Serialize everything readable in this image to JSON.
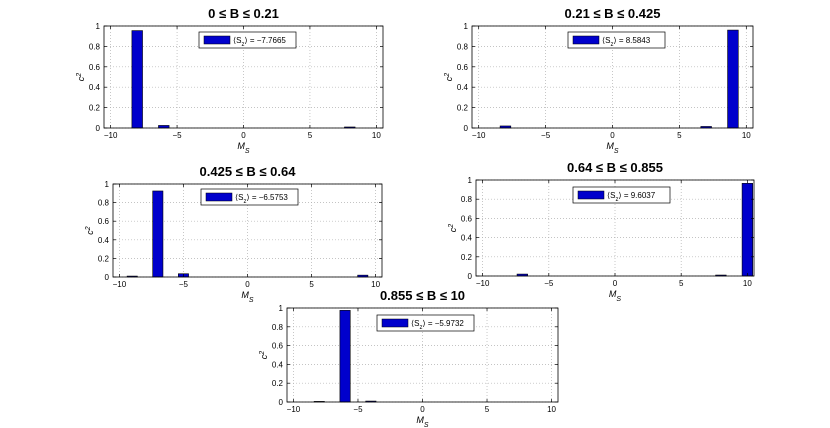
{
  "chart_data": [
    {
      "type": "bar",
      "title": "0 ≤ B ≤ 0.21",
      "xlabel": "M_S",
      "ylabel": "c^2",
      "xlim": [
        -10.5,
        10.5
      ],
      "ylim": [
        0,
        1
      ],
      "xticks": [
        -10,
        -5,
        0,
        5,
        10
      ],
      "yticks": [
        0,
        0.2,
        0.4,
        0.6,
        0.8,
        1
      ],
      "x": [
        -8,
        -6,
        8
      ],
      "values": [
        0.955,
        0.025,
        0.01
      ],
      "legend": "⟨S_z⟩ = −7.7665",
      "color": "#0000cc",
      "grid": true
    },
    {
      "type": "bar",
      "title": "0.21 ≤ B ≤ 0.425",
      "xlabel": "M_S",
      "ylabel": "c^2",
      "xlim": [
        -10.5,
        10.5
      ],
      "ylim": [
        0,
        1
      ],
      "xticks": [
        -10,
        -5,
        0,
        5,
        10
      ],
      "yticks": [
        0,
        0.2,
        0.4,
        0.6,
        0.8,
        1
      ],
      "x": [
        -8,
        7,
        9
      ],
      "values": [
        0.02,
        0.015,
        0.96
      ],
      "legend": "⟨S_z⟩ = 8.5843",
      "color": "#0000cc",
      "grid": true
    },
    {
      "type": "bar",
      "title": "0.425 ≤ B ≤ 0.64",
      "xlabel": "M_S",
      "ylabel": "c^2",
      "xlim": [
        -10.5,
        10.5
      ],
      "ylim": [
        0,
        1
      ],
      "xticks": [
        -10,
        -5,
        0,
        5,
        10
      ],
      "yticks": [
        0,
        0.2,
        0.4,
        0.6,
        0.8,
        1
      ],
      "x": [
        -9,
        -7,
        -5,
        9
      ],
      "values": [
        0.01,
        0.925,
        0.035,
        0.02
      ],
      "legend": "⟨S_z⟩ = −6.5753",
      "color": "#0000cc",
      "grid": true
    },
    {
      "type": "bar",
      "title": "0.64 ≤ B ≤ 0.855",
      "xlabel": "M_S",
      "ylabel": "c^2",
      "xlim": [
        -10.5,
        10.5
      ],
      "ylim": [
        0,
        1
      ],
      "xticks": [
        -10,
        -5,
        0,
        5,
        10
      ],
      "yticks": [
        0,
        0.2,
        0.4,
        0.6,
        0.8,
        1
      ],
      "x": [
        -7,
        8,
        10
      ],
      "values": [
        0.02,
        0.01,
        0.965
      ],
      "legend": "⟨S_z⟩ = 9.6037",
      "color": "#0000cc",
      "grid": true
    },
    {
      "type": "bar",
      "title": "0.855 ≤ B ≤ 10",
      "xlabel": "M_S",
      "ylabel": "c^2",
      "xlim": [
        -10.5,
        10.5
      ],
      "ylim": [
        0,
        1
      ],
      "xticks": [
        -10,
        -5,
        0,
        5,
        10
      ],
      "yticks": [
        0,
        0.2,
        0.4,
        0.6,
        0.8,
        1
      ],
      "x": [
        -8,
        -6,
        -4
      ],
      "values": [
        0.005,
        0.975,
        0.01
      ],
      "legend": "⟨S_z⟩ = −5.9732",
      "color": "#0000cc",
      "grid": true
    }
  ]
}
